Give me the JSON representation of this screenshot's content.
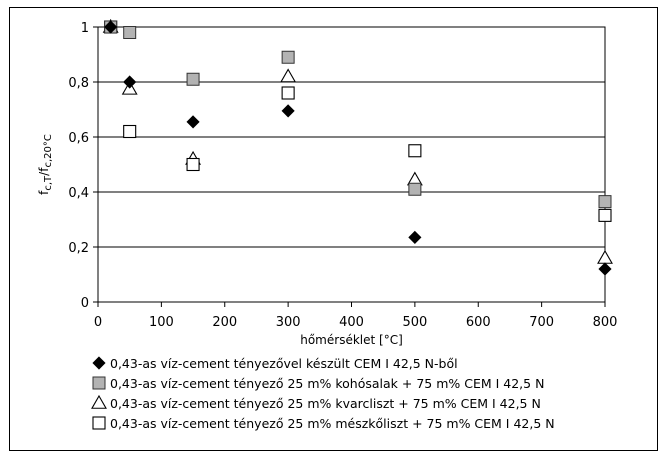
{
  "chart_data": {
    "type": "scatter",
    "xlabel": "hőmérséklet [°C]",
    "ylabel": {
      "base1": "f",
      "sub1": "c,T",
      "sep": "/f",
      "sub2": "c,20°C"
    },
    "xlim": [
      0,
      800
    ],
    "ylim": [
      0,
      1
    ],
    "xticks": [
      0,
      100,
      200,
      300,
      400,
      500,
      600,
      700,
      800
    ],
    "yticks": [
      0,
      0.2,
      0.4,
      0.6,
      0.8,
      1
    ],
    "xtick_labels": [
      "0",
      "100",
      "200",
      "300",
      "400",
      "500",
      "600",
      "700",
      "800"
    ],
    "ytick_labels": [
      "0",
      "0,2",
      "0,4",
      "0,6",
      "0,8",
      "1"
    ],
    "grid": "horizontal",
    "legend_position": "bottom",
    "series": [
      {
        "name": "0,43-as víz-cement tényezővel készült CEM I 42,5 N-ből",
        "marker": "diamond",
        "color": "#000000",
        "x": [
          20,
          50,
          150,
          300,
          500,
          800
        ],
        "y": [
          1.0,
          0.8,
          0.655,
          0.695,
          0.235,
          0.12
        ]
      },
      {
        "name": "0,43-as víz-cement tényező 25 m% kohósalak + 75 m% CEM I 42,5 N",
        "marker": "square-filled",
        "color": "#b3b3b3",
        "x": [
          20,
          50,
          150,
          300,
          500,
          800
        ],
        "y": [
          1.0,
          0.98,
          0.81,
          0.89,
          0.41,
          0.365
        ]
      },
      {
        "name": "0,43-as víz-cement tényező 25 m% kvarcliszt + 75 m% CEM I 42,5 N",
        "marker": "triangle-open",
        "color": "#000000",
        "x": [
          20,
          50,
          150,
          300,
          500,
          800
        ],
        "y": [
          1.0,
          0.775,
          0.52,
          0.82,
          0.445,
          0.16
        ]
      },
      {
        "name": "0,43-as víz-cement tényező 25 m% mészkőliszt + 75 m% CEM I 42,5 N",
        "marker": "square-open",
        "color": "#000000",
        "x": [
          20,
          50,
          150,
          300,
          500,
          800
        ],
        "y": [
          1.0,
          0.62,
          0.5,
          0.76,
          0.55,
          0.315
        ]
      }
    ]
  }
}
